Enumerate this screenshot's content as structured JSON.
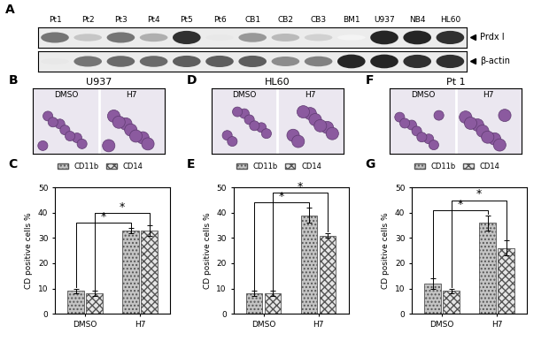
{
  "blot": {
    "label": "A",
    "lanes": [
      "Pt1",
      "Pt2",
      "Pt3",
      "Pt4",
      "Pt5",
      "Pt6",
      "CB1",
      "CB2",
      "CB3",
      "BM1",
      "U937",
      "NB4",
      "HL60"
    ],
    "rows": [
      {
        "name": "Prdx I",
        "band_intensity": [
          0.6,
          0.25,
          0.6,
          0.35,
          0.9,
          0.1,
          0.45,
          0.3,
          0.2,
          0.05,
          0.95,
          0.95,
          0.9
        ]
      },
      {
        "name": "β-actin",
        "band_intensity": [
          0.1,
          0.6,
          0.65,
          0.65,
          0.7,
          0.7,
          0.7,
          0.5,
          0.55,
          0.95,
          0.95,
          0.9,
          0.9
        ]
      }
    ]
  },
  "micrographs": [
    {
      "label": "B",
      "title": "U937",
      "conditions": [
        "DMSO",
        "H7"
      ]
    },
    {
      "label": "D",
      "title": "HL60",
      "conditions": [
        "DMSO",
        "H7"
      ]
    },
    {
      "label": "F",
      "title": "Pt 1",
      "conditions": [
        "DMSO",
        "H7"
      ]
    }
  ],
  "chart_data": [
    {
      "label": "C",
      "type": "bar",
      "categories": [
        "DMSO",
        "H7"
      ],
      "y_label": "CD positive cells %",
      "ylim": [
        0,
        50
      ],
      "yticks": [
        0,
        10,
        20,
        30,
        40,
        50
      ],
      "legend": "upper left",
      "series": [
        {
          "name": "CD11b",
          "color": "#c4c4c4",
          "values": [
            9,
            33
          ],
          "errors": [
            1,
            1
          ]
        },
        {
          "name": "CD14",
          "color": "#e6e6e6",
          "values": [
            8,
            33
          ],
          "errors": [
            1,
            2
          ]
        }
      ],
      "annotations": [
        {
          "series": "CD11b",
          "text": "*"
        },
        {
          "series": "CD14",
          "text": "*"
        }
      ]
    },
    {
      "label": "E",
      "type": "bar",
      "categories": [
        "DMSO",
        "H7"
      ],
      "y_label": "CD positive cells %",
      "ylim": [
        0,
        50
      ],
      "yticks": [
        0,
        10,
        20,
        30,
        40,
        50
      ],
      "legend": "upper left",
      "series": [
        {
          "name": "CD11b",
          "color": "#c4c4c4",
          "values": [
            8,
            39
          ],
          "errors": [
            1,
            3
          ]
        },
        {
          "name": "CD14",
          "color": "#e6e6e6",
          "values": [
            8,
            31
          ],
          "errors": [
            1,
            1
          ]
        }
      ],
      "annotations": [
        {
          "series": "CD11b",
          "text": "*"
        },
        {
          "series": "CD14",
          "text": "*"
        }
      ]
    },
    {
      "label": "G",
      "type": "bar",
      "categories": [
        "DMSO",
        "H7"
      ],
      "y_label": "CD positive cells %",
      "ylim": [
        0,
        50
      ],
      "yticks": [
        0,
        10,
        20,
        30,
        40,
        50
      ],
      "legend": "upper left",
      "series": [
        {
          "name": "CD11b",
          "color": "#c4c4c4",
          "values": [
            12,
            36
          ],
          "errors": [
            2,
            3
          ]
        },
        {
          "name": "CD14",
          "color": "#e6e6e6",
          "values": [
            9,
            26
          ],
          "errors": [
            1,
            3
          ]
        }
      ],
      "annotations": [
        {
          "series": "CD11b",
          "text": "*"
        },
        {
          "series": "CD14",
          "text": "*"
        }
      ]
    }
  ]
}
